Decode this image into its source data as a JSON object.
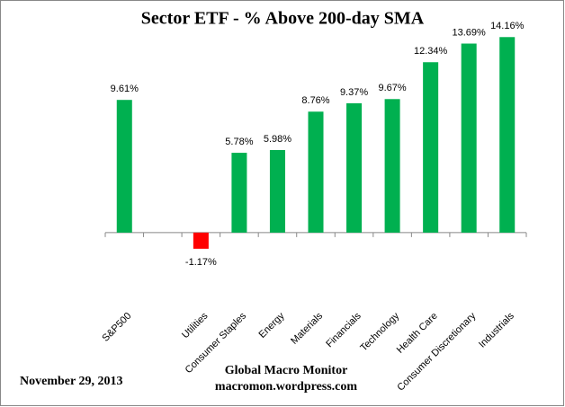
{
  "chart_data": {
    "type": "bar",
    "title": "Sector ETF - % Above 200-day SMA",
    "categories": [
      "S&P500",
      null,
      "Utilities",
      "Consumer Staples",
      "Energy",
      "Materials",
      "Financials",
      "Technology",
      "Health Care",
      "Consumer Discretionary",
      "Industrials"
    ],
    "values": [
      9.61,
      null,
      -1.17,
      5.78,
      5.98,
      8.76,
      9.37,
      9.67,
      12.34,
      13.69,
      14.16
    ],
    "value_labels": [
      "9.61%",
      null,
      "-1.17%",
      "5.78%",
      "5.98%",
      "8.76%",
      "9.37%",
      "9.67%",
      "12.34%",
      "13.69%",
      "14.16%"
    ],
    "color": "#00b050",
    "negative_color": "#ff0000",
    "ylim": [
      -3,
      16
    ],
    "date": "November 29, 2013",
    "source": [
      "Global Macro Monitor",
      "macromon.wordpress.com"
    ]
  }
}
